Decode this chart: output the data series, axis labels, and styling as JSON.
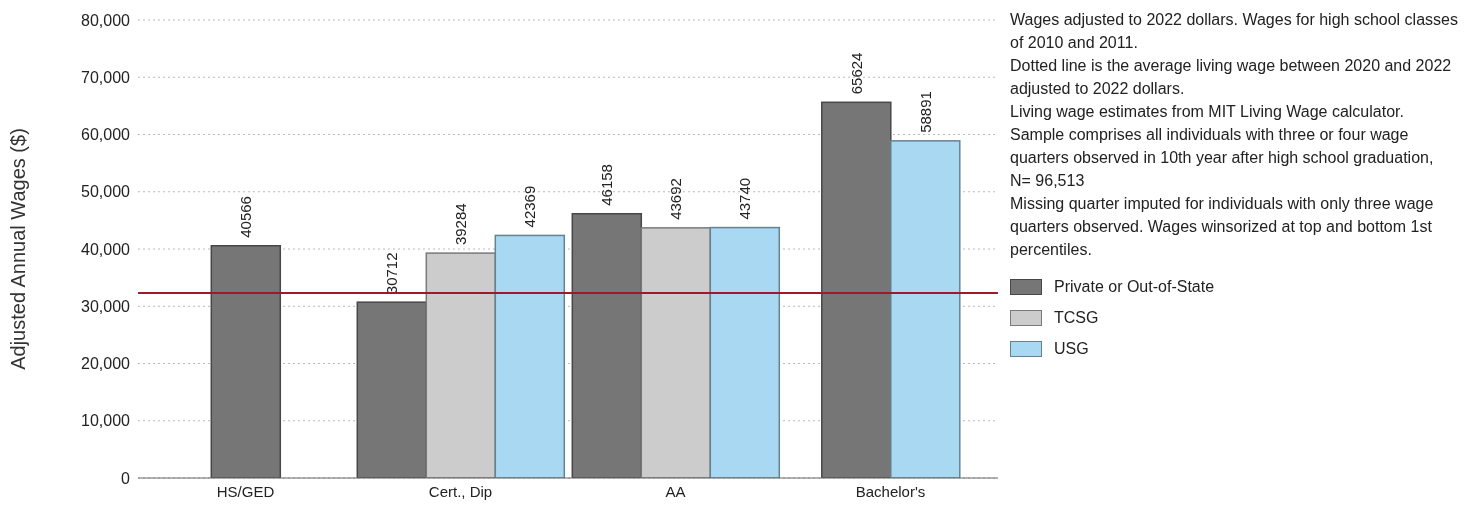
{
  "chart_data": {
    "type": "bar",
    "ylabel": "Adjusted Annual Wages ($)",
    "categories": [
      "HS/GED",
      "Cert., Dip",
      "AA",
      "Bachelor's"
    ],
    "series": [
      {
        "name": "Private or Out-of-State",
        "color": "#767676",
        "values": [
          40566,
          30712,
          46158,
          65624
        ]
      },
      {
        "name": "TCSG",
        "color": "#cccccc",
        "values": [
          null,
          39284,
          43692,
          null
        ]
      },
      {
        "name": "USG",
        "color": "#a9d9f2",
        "values": [
          null,
          42369,
          43740,
          58891
        ]
      }
    ],
    "ylim": [
      0,
      80000
    ],
    "yticks": [
      0,
      {
        "value": 10000,
        "label": "10,000"
      },
      {
        "value": 20000,
        "label": "20,000"
      },
      {
        "value": 30000,
        "label": "30,000"
      },
      {
        "value": 40000,
        "label": "40,000"
      },
      {
        "value": 50000,
        "label": "50,000"
      },
      {
        "value": 60000,
        "label": "60,000"
      },
      {
        "value": 70000,
        "label": "70,000"
      },
      {
        "value": 80000,
        "label": "80,000"
      }
    ],
    "grid": "y",
    "legend": "right",
    "data_labels": true,
    "ref_lines": [
      {
        "axis": "y",
        "value": 32300,
        "color": "#a0182c"
      }
    ],
    "annotations": [
      "Wages adjusted to 2022 dollars. Wages for high school classes of 2010 and 2011.",
      "Dotted line is the average living wage between 2020 and 2022 adjusted to 2022 dollars.",
      "Living wage estimates from MIT Living Wage calculator. Sample comprises all individuals with three or four wage quarters observed in 10th year after high school graduation, N= 96,513",
      "Missing quarter imputed for individuals with only three wage quarters observed. Wages winsorized at top and bottom 1st percentiles."
    ]
  }
}
